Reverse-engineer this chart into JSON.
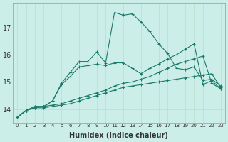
{
  "xlabel": "Humidex (Indice chaleur)",
  "background_color": "#cceee8",
  "grid_color": "#bbddcc",
  "line_color": "#1a7a6a",
  "xlim": [
    -0.5,
    23.5
  ],
  "ylim": [
    13.5,
    17.9
  ],
  "yticks": [
    14,
    15,
    16,
    17
  ],
  "series": [
    {
      "x": [
        0,
        1,
        2,
        3,
        4,
        5,
        6,
        7,
        8,
        9,
        10,
        11,
        12,
        13,
        14,
        15,
        16,
        17,
        18,
        19,
        20,
        21,
        22,
        23
      ],
      "y": [
        13.7,
        13.95,
        14.05,
        14.05,
        14.1,
        14.15,
        14.2,
        14.3,
        14.4,
        14.5,
        14.6,
        14.7,
        14.8,
        14.85,
        14.9,
        14.95,
        15.0,
        15.05,
        15.1,
        15.15,
        15.2,
        15.25,
        15.3,
        14.8
      ],
      "marker": true
    },
    {
      "x": [
        0,
        1,
        2,
        3,
        4,
        5,
        6,
        7,
        8,
        9,
        10,
        11,
        12,
        13,
        14,
        15,
        16,
        17,
        18,
        19,
        20,
        21,
        22,
        23
      ],
      "y": [
        13.7,
        13.95,
        14.05,
        14.1,
        14.15,
        14.2,
        14.3,
        14.4,
        14.5,
        14.6,
        14.7,
        14.85,
        14.95,
        15.0,
        15.1,
        15.2,
        15.35,
        15.5,
        15.65,
        15.75,
        15.85,
        15.95,
        14.95,
        14.75
      ],
      "marker": true
    },
    {
      "x": [
        0,
        1,
        2,
        3,
        4,
        5,
        6,
        7,
        8,
        9,
        10,
        11,
        12,
        13,
        14,
        15,
        16,
        17,
        18,
        19,
        20,
        21,
        22,
        23
      ],
      "y": [
        13.7,
        13.95,
        14.1,
        14.1,
        14.3,
        14.9,
        15.2,
        15.55,
        15.6,
        15.65,
        15.6,
        15.7,
        15.7,
        15.5,
        15.3,
        15.5,
        15.65,
        15.85,
        16.0,
        16.2,
        16.4,
        14.9,
        15.05,
        14.75
      ],
      "marker": true
    },
    {
      "x": [
        0,
        1,
        2,
        3,
        4,
        5,
        6,
        7,
        8,
        9,
        10,
        11,
        12,
        13,
        14,
        15,
        16,
        17,
        18,
        19,
        20,
        21,
        22,
        23
      ],
      "y": [
        13.7,
        13.95,
        14.1,
        14.1,
        14.3,
        14.95,
        15.35,
        15.75,
        15.75,
        16.1,
        15.7,
        17.55,
        17.45,
        17.5,
        17.2,
        16.85,
        16.4,
        16.05,
        15.5,
        15.45,
        15.55,
        15.05,
        15.1,
        14.85
      ],
      "marker": true
    }
  ]
}
